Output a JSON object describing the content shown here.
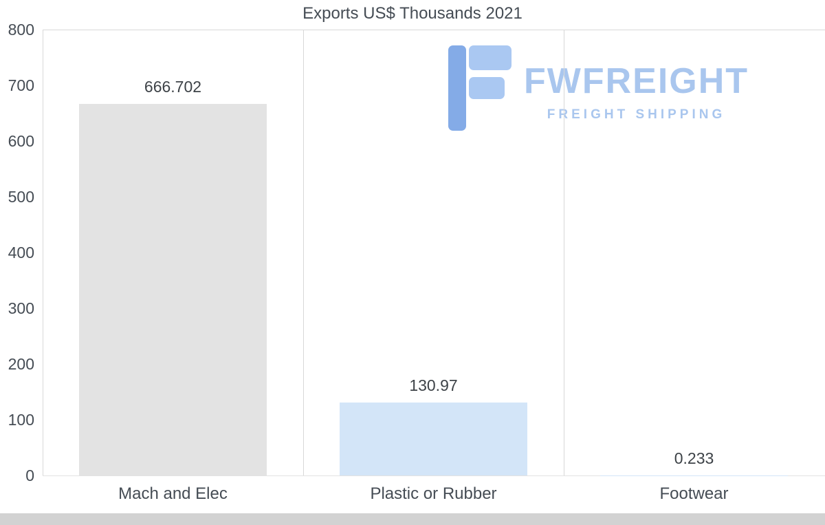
{
  "chart_data": {
    "type": "bar",
    "title": "Exports US$ Thousands 2021",
    "categories": [
      "Mach and Elec",
      "Plastic or Rubber",
      "Footwear"
    ],
    "values": [
      666.702,
      130.97,
      0.233
    ],
    "value_labels": [
      "666.702",
      "130.97",
      "0.233"
    ],
    "bar_colors": [
      "#e3e3e3",
      "#d3e5f8",
      "#d3e5f8"
    ],
    "xlabel": "",
    "ylabel": "",
    "ylim": [
      0,
      800
    ],
    "yticks": [
      0,
      100,
      200,
      300,
      400,
      500,
      600,
      700,
      800
    ],
    "grid": "vertical-category-separators",
    "legend": "none"
  },
  "watermark": {
    "brand": "FWFREIGHT",
    "tagline": "FREIGHT SHIPPING",
    "color": "#a9c6ee"
  },
  "colors": {
    "title_text": "#454c54",
    "axis_text": "#454c54",
    "gridline": "#d8d8d8",
    "bar_gray": "#e3e3e3",
    "bar_blue": "#d3e5f8",
    "logo_dark_blue": "#84abe7",
    "logo_light_blue": "#aac8f2"
  }
}
